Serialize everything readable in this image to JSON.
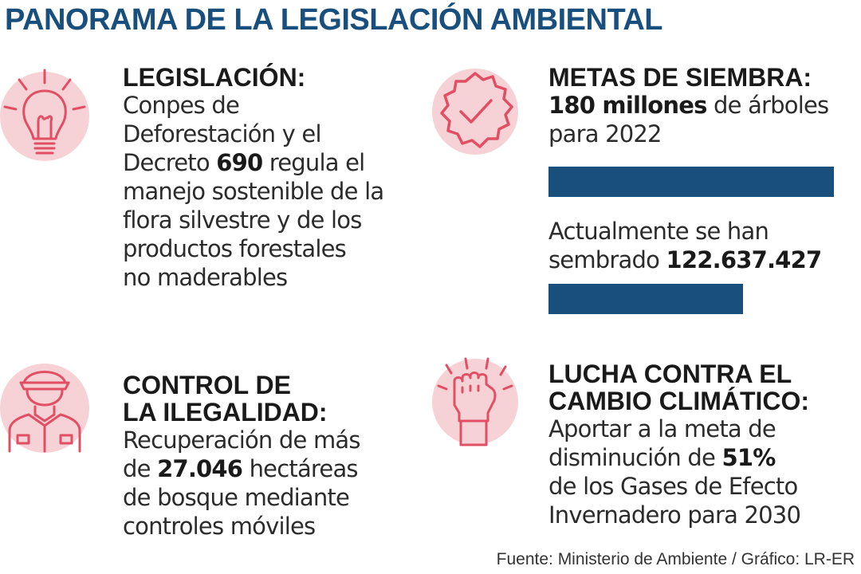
{
  "title": "PANORAMA DE LA LEGISLACIÓN AMBIENTAL",
  "colors": {
    "title_blue": "#184f7d",
    "icon_stroke": "#e04f63",
    "icon_fill": "#f6d2d7",
    "bar_blue": "#184f7d"
  },
  "legislacion": {
    "icon": "lightbulb-icon",
    "heading": "LEGISLACIÓN:",
    "lines": [
      "Conpes de",
      "Deforestación y el",
      "Decreto ",
      "690",
      " regula el",
      "manejo sostenible de la",
      "flora silvestre y de los",
      "productos forestales",
      "no maderables"
    ]
  },
  "metas": {
    "icon": "badge-check-icon",
    "heading": "METAS DE SIEMBRA:",
    "goal_value": "180 millones",
    "goal_rest": " de árboles",
    "goal_line2": "para 2022",
    "current_line1": "Actualmente se han",
    "current_prefix": "sembrado ",
    "current_value": "122.637.427",
    "goal_trees": 180000000,
    "planted_trees": 122637427,
    "planted_fraction": 0.681
  },
  "control": {
    "icon": "police-officer-icon",
    "heading_line1": "CONTROL DE",
    "heading_line2": "LA ILEGALIDAD:",
    "line1": "Recuperación de más",
    "line2_prefix": "de ",
    "line2_value": "27.046",
    "line2_rest": " hectáreas",
    "line3": "de bosque mediante",
    "line4": "controles móviles"
  },
  "lucha": {
    "icon": "raised-fist-icon",
    "heading_line1": "LUCHA CONTRA EL",
    "heading_line2": "CAMBIO CLIMÁTICO:",
    "line1": "Aportar a la meta de",
    "line2_prefix": "disminución de ",
    "line2_value": "51%",
    "line3": "de los Gases de Efecto",
    "line4": "Invernadero para 2030"
  },
  "source": "Fuente: Ministerio de Ambiente / Gráfico: LR-ER"
}
